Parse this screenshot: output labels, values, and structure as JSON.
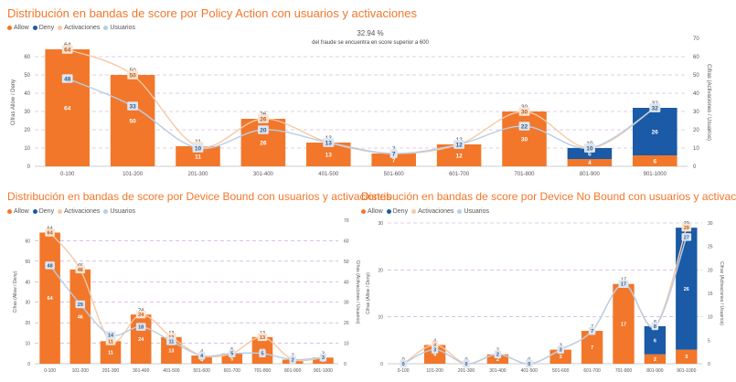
{
  "colors": {
    "allow": "#f2772a",
    "deny": "#1a5aa6",
    "activaciones": "#f7c9a4",
    "usuarios": "#b8cde6",
    "grid": "#c39bd3"
  },
  "charts": [
    {
      "title": "Distribución en bandas de score por Policy Action con usuarios y activaciones",
      "legend": [
        {
          "label": "Allow",
          "color_key": "allow"
        },
        {
          "label": "Deny",
          "color_key": "deny"
        },
        {
          "label": "Activaciones",
          "color_key": "activaciones"
        },
        {
          "label": "Usuarios",
          "color_key": "usuarios"
        }
      ],
      "annotation": {
        "value": "32.94 %",
        "text": "del fraude se encuentra en  score superior a 600"
      }
    },
    {
      "title": "Distribución en bandas de score por Device Bound con usuarios y activaciones",
      "legend": [
        {
          "label": "Allow",
          "color_key": "allow"
        },
        {
          "label": "Deny",
          "color_key": "deny"
        },
        {
          "label": "Activaciones",
          "color_key": "activaciones"
        },
        {
          "label": "Usuarios",
          "color_key": "usuarios"
        }
      ]
    },
    {
      "title": "Distribución en bandas de score por Device No Bound con usuarios y activaciones",
      "legend": [
        {
          "label": "Allow",
          "color_key": "allow"
        },
        {
          "label": "Deny",
          "color_key": "deny"
        },
        {
          "label": "Activaciones",
          "color_key": "activaciones"
        },
        {
          "label": "Usuarios",
          "color_key": "usuarios"
        }
      ]
    }
  ],
  "chart_data": [
    {
      "type": "bar",
      "stacked": true,
      "title": "Distribución en bandas de score por Policy Action con usuarios y activaciones",
      "ylabel": "Cifras Allow / Deny",
      "y2label": "Cifras (Activaciones / Usuarios)",
      "ylim": [
        0,
        70
      ],
      "y2lim": [
        0,
        70
      ],
      "yticks": [
        0,
        10,
        20,
        30,
        40,
        50,
        60
      ],
      "y2ticks": [
        0,
        10,
        20,
        30,
        40,
        50,
        60,
        70
      ],
      "categories": [
        "0-100",
        "101-200",
        "201-300",
        "301-400",
        "401-500",
        "501-600",
        "601-700",
        "701-800",
        "801-900",
        "901-1000"
      ],
      "allow": [
        64,
        50,
        11,
        26,
        13,
        7,
        12,
        30,
        4,
        6
      ],
      "deny": [
        0,
        0,
        0,
        0,
        0,
        0,
        0,
        0,
        6,
        26
      ],
      "totals": [
        64,
        50,
        11,
        26,
        13,
        7,
        12,
        30,
        10,
        32
      ],
      "activaciones": [
        64,
        50,
        11,
        26,
        13,
        7,
        12,
        30,
        10,
        32
      ],
      "usuarios": [
        48,
        33,
        10,
        20,
        13,
        7,
        12,
        22,
        10,
        32
      ]
    },
    {
      "type": "bar",
      "stacked": true,
      "title": "Distribución en bandas de score por Device Bound con usuarios y activaciones",
      "ylabel": "Cifras (Allow / Deny)",
      "y2label": "Cifras (Activaciones / Usuarios)",
      "ylim": [
        0,
        70
      ],
      "y2lim": [
        0,
        70
      ],
      "yticks": [
        0,
        10,
        20,
        30,
        40,
        50,
        60
      ],
      "y2ticks": [
        0,
        10,
        20,
        30,
        40,
        50,
        60,
        70
      ],
      "categories": [
        "0-100",
        "101-200",
        "201-300",
        "301-400",
        "401-500",
        "501-600",
        "601-700",
        "701-800",
        "801-900",
        "901-1000"
      ],
      "allow": [
        64,
        46,
        11,
        24,
        13,
        4,
        5,
        13,
        2,
        3
      ],
      "deny": [
        0,
        0,
        0,
        0,
        0,
        0,
        0,
        0,
        0,
        0
      ],
      "totals": [
        64,
        46,
        11,
        24,
        13,
        4,
        5,
        13,
        2,
        3
      ],
      "activaciones": [
        64,
        46,
        11,
        24,
        13,
        4,
        5,
        13,
        2,
        3
      ],
      "usuarios": [
        48,
        29,
        14,
        18,
        11,
        4,
        5,
        5,
        2,
        3
      ]
    },
    {
      "type": "bar",
      "stacked": true,
      "title": "Distribución en bandas de score por Device No Bound con usuarios y activaciones",
      "ylabel": "Cifras (Allow / Deny)",
      "y2label": "Cifras (Activaciones / Usuarios)",
      "ylim": [
        0,
        30
      ],
      "y2lim": [
        0,
        30
      ],
      "yticks": [
        0,
        10,
        20,
        30
      ],
      "y2ticks": [
        0,
        5,
        10,
        15,
        20,
        25,
        30
      ],
      "categories": [
        "0-100",
        "101-200",
        "201-300",
        "301-400",
        "401-500",
        "501-600",
        "601-700",
        "701-800",
        "801-900",
        "901-1000"
      ],
      "allow": [
        0,
        4,
        0,
        2,
        0,
        3,
        7,
        17,
        2,
        3
      ],
      "deny": [
        0,
        0,
        0,
        0,
        0,
        0,
        0,
        0,
        6,
        26
      ],
      "totals": [
        0,
        4,
        0,
        2,
        0,
        3,
        7,
        17,
        8,
        29
      ],
      "activaciones": [
        0,
        4,
        0,
        2,
        0,
        3,
        7,
        17,
        8,
        29
      ],
      "usuarios": [
        0,
        3,
        0,
        2,
        0,
        3,
        7,
        17,
        8,
        27
      ]
    }
  ]
}
